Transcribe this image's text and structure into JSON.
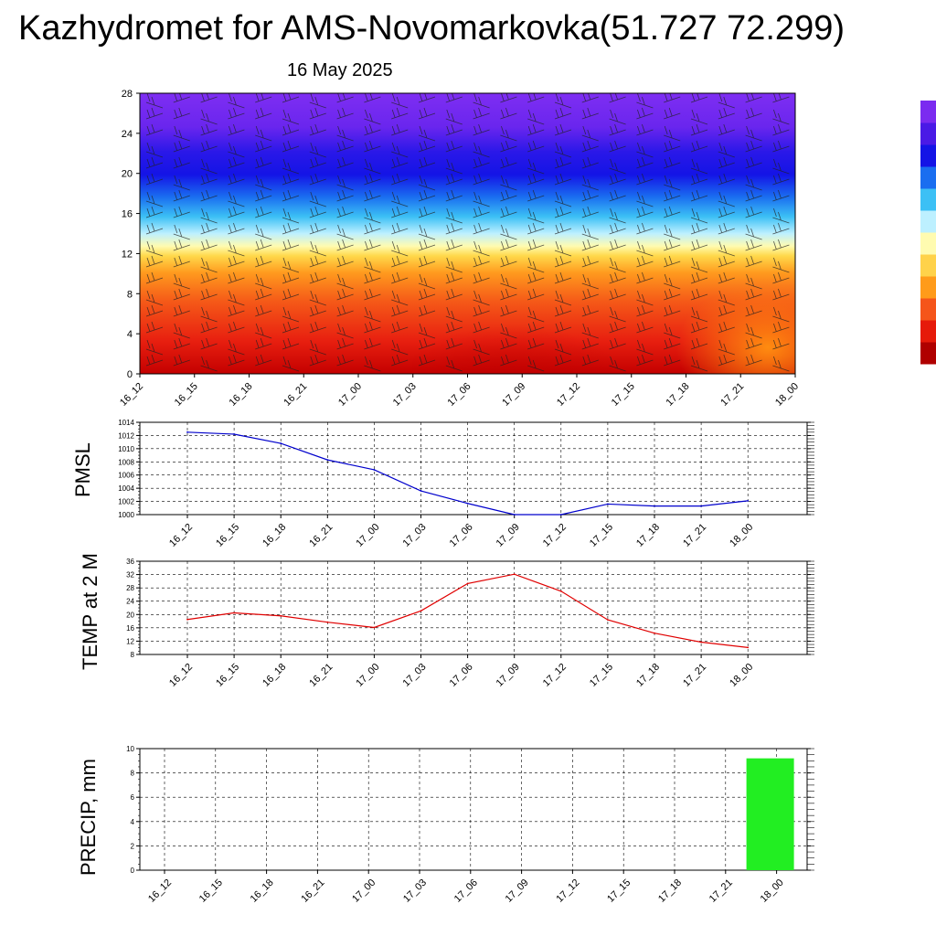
{
  "header": {
    "title": "Kazhydromet for AMS-Novomarkovka(51.727 72.299)",
    "date": "16 May 2025"
  },
  "time_labels": [
    "16_12",
    "16_15",
    "16_18",
    "16_21",
    "17_00",
    "17_03",
    "17_06",
    "17_09",
    "17_12",
    "17_15",
    "17_18",
    "17_21",
    "18_00"
  ],
  "chart_data": [
    {
      "type": "heatmap",
      "title": "",
      "ylim": [
        0,
        28
      ],
      "yticks": [
        0,
        4,
        8,
        12,
        16,
        20,
        24,
        28
      ],
      "x": [
        "16_12",
        "16_15",
        "16_18",
        "16_21",
        "17_00",
        "17_03",
        "17_06",
        "17_09",
        "17_12",
        "17_15",
        "17_18",
        "17_21",
        "18_00"
      ],
      "note_colors": [
        "#7b2bf0",
        "#1a1af5",
        "#2aa8f0",
        "#fffbb0",
        "#ffb020",
        "#f04010",
        "#b00000"
      ],
      "colorbar": [
        "#b00000",
        "#e61a0a",
        "#f5551a",
        "#ff9b1a",
        "#ffd24a",
        "#fffbb0",
        "#bdf0ff",
        "#3cc0f5",
        "#1a6ef0",
        "#1414e6",
        "#4a1ae6",
        "#7b2bf0"
      ]
    },
    {
      "type": "line",
      "ylabel": "PMSL",
      "ylim": [
        1000,
        1014
      ],
      "yticks": [
        1000,
        1002,
        1004,
        1006,
        1008,
        1010,
        1012,
        1014
      ],
      "x": [
        "16_12",
        "16_15",
        "16_18",
        "16_21",
        "17_00",
        "17_03",
        "17_06",
        "17_09",
        "17_12",
        "17_15",
        "17_18",
        "17_21",
        "18_00"
      ],
      "series": [
        {
          "values": [
            1012.5,
            1012.2,
            1010.8,
            1008.3,
            1006.8,
            1003.6,
            1001.7,
            1000.0,
            1000.0,
            1001.6,
            1001.3,
            1001.3,
            1002.1
          ],
          "color": "#0000cc"
        }
      ],
      "grid": true
    },
    {
      "type": "line",
      "ylabel": "TEMP at 2 M",
      "ylim": [
        8,
        36
      ],
      "yticks": [
        8,
        12,
        16,
        20,
        24,
        28,
        32,
        36
      ],
      "x": [
        "16_12",
        "16_15",
        "16_18",
        "16_21",
        "17_00",
        "17_03",
        "17_06",
        "17_09",
        "17_12",
        "17_15",
        "17_18",
        "17_21",
        "18_00"
      ],
      "series": [
        {
          "values": [
            18.5,
            20.5,
            19.6,
            17.7,
            16.1,
            21.1,
            29.3,
            32.1,
            27.0,
            18.4,
            14.4,
            11.7,
            10.1
          ],
          "color": "#e00000"
        }
      ],
      "grid": true
    },
    {
      "type": "bar",
      "ylabel": "PRECIP, mm",
      "ylim": [
        0,
        10
      ],
      "yticks": [
        0,
        2,
        4,
        6,
        8,
        10
      ],
      "categories": [
        "16_12",
        "16_15",
        "16_18",
        "16_21",
        "17_00",
        "17_03",
        "17_06",
        "17_09",
        "17_12",
        "17_15",
        "17_18",
        "17_21",
        "18_00"
      ],
      "values": [
        0,
        0,
        0,
        0,
        0,
        0,
        0,
        0,
        0,
        0,
        0,
        0,
        9.2
      ],
      "color": "#22ee22",
      "grid": true
    }
  ]
}
